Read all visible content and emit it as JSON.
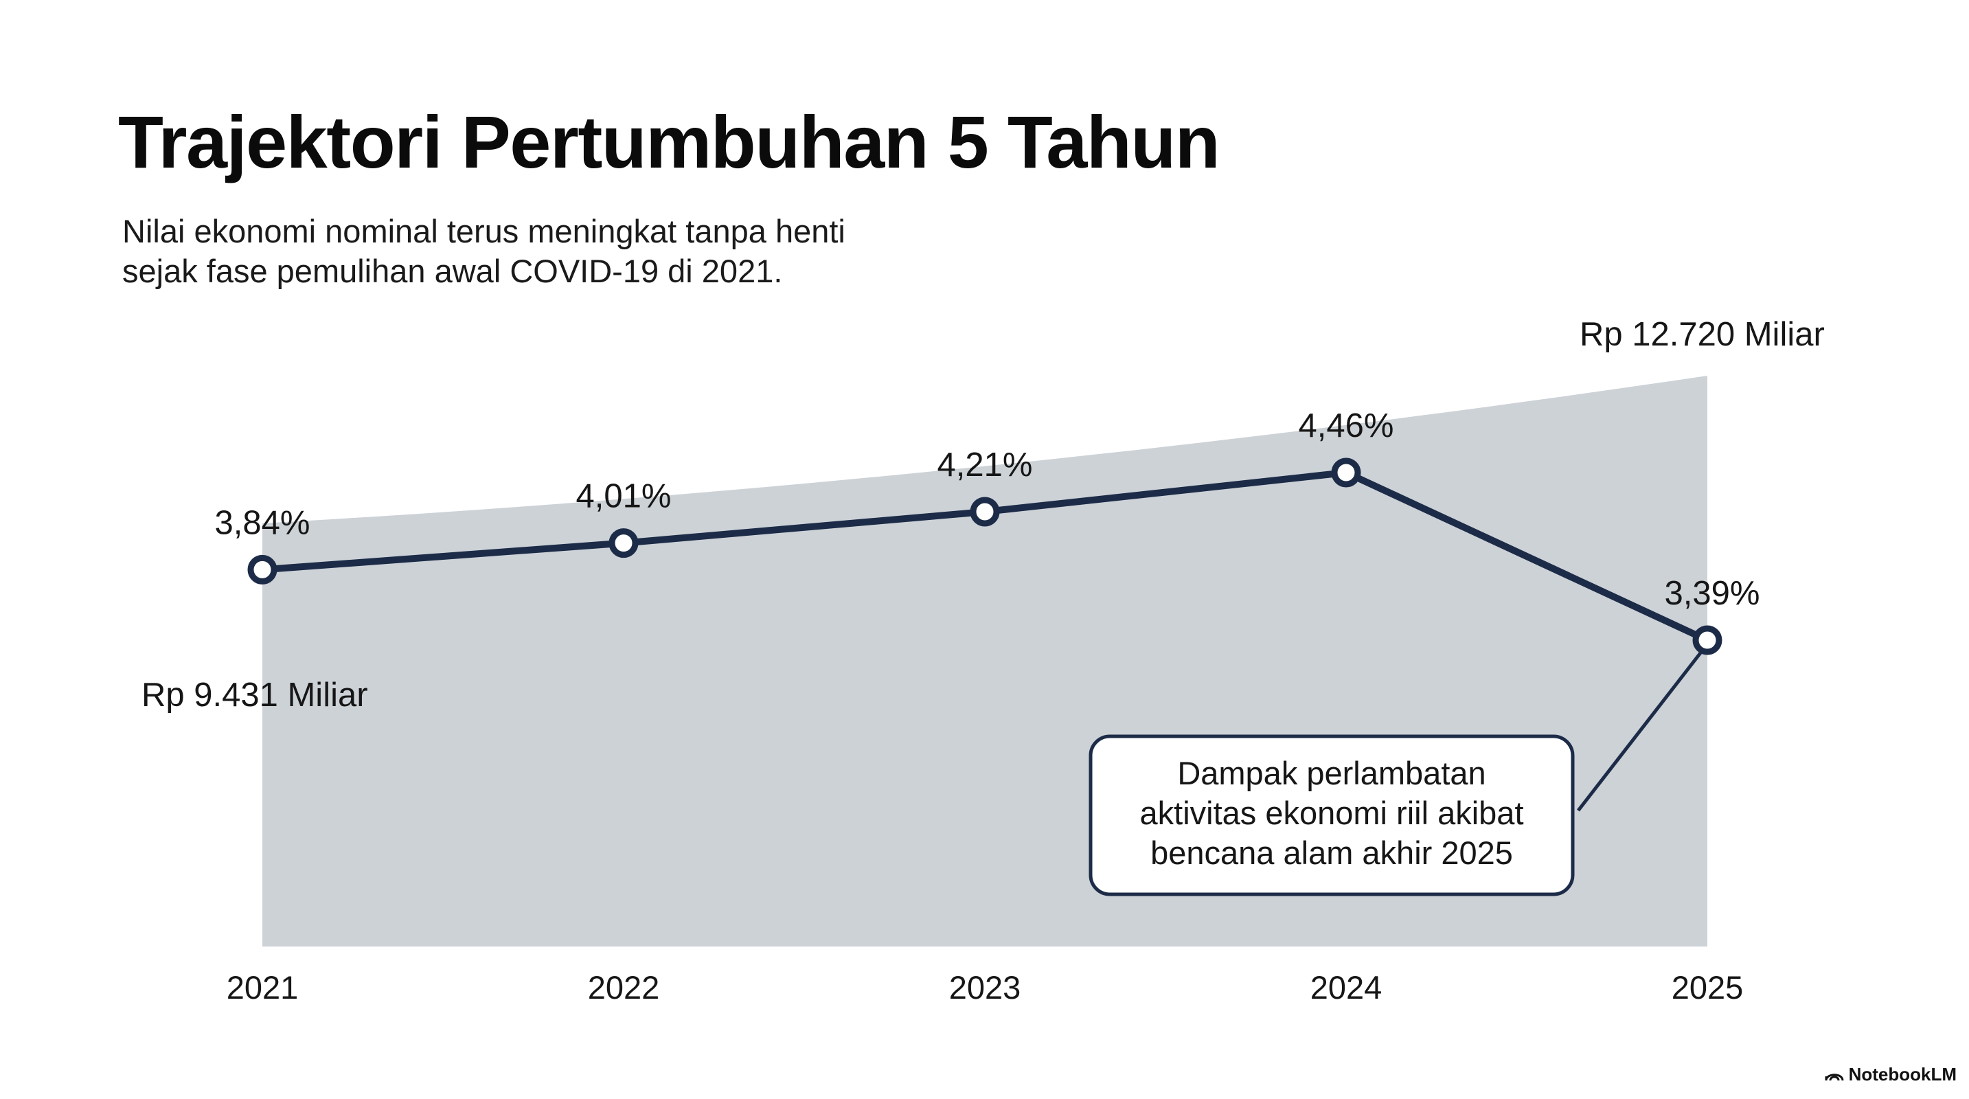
{
  "slide": {
    "title": "Trajektori Pertumbuhan 5 Tahun",
    "subtitle_line1": "Nilai ekonomi nominal terus meningkat tanpa henti",
    "subtitle_line2": "sejak fase pemulihan awal COVID-19 di 2021.",
    "brand": "NotebookLM",
    "brand_icon": "notebooklm-logo-icon"
  },
  "chart_data": {
    "type": "line",
    "x": [
      2021,
      2022,
      2023,
      2024,
      2025
    ],
    "x_labels": [
      "2021",
      "2022",
      "2023",
      "2024",
      "2025"
    ],
    "series": [
      {
        "kind": "line",
        "values": [
          3.84,
          4.01,
          4.21,
          4.46,
          3.39
        ],
        "labels": [
          "3,84%",
          "4,01%",
          "4,21%",
          "4,46%",
          "3,39%"
        ],
        "color": "#1c2b47"
      },
      {
        "kind": "area",
        "start_value": 9431,
        "end_value": 12720,
        "start_label": "Rp 9.431 Miliar",
        "end_label": "Rp 12.720 Miliar",
        "color": "#cdd2d7"
      }
    ],
    "annotation": {
      "lines": [
        "Dampak perlambatan",
        "aktivitas ekonomi riil akibat",
        "bencana alam akhir 2025"
      ],
      "points_to": "2025"
    },
    "grid": false,
    "legend": "none"
  }
}
